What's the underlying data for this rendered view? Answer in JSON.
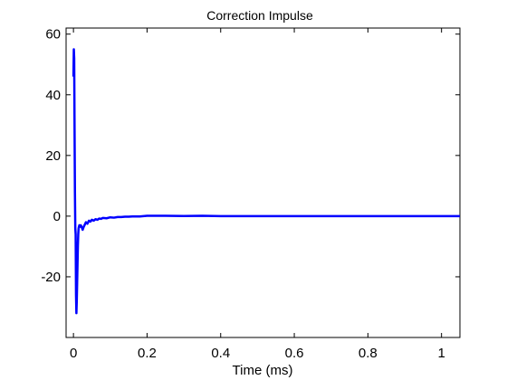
{
  "chart_data": {
    "type": "line",
    "title": "Correction Impulse",
    "xlabel": "Time (ms)",
    "ylabel": "",
    "xlim": [
      -0.02,
      1.05
    ],
    "ylim": [
      -40,
      62
    ],
    "xticks": [
      0,
      0.2,
      0.4,
      0.6,
      0.8,
      1
    ],
    "xtick_labels": [
      "0",
      "0.2",
      "0.4",
      "0.6",
      "0.8",
      "1"
    ],
    "yticks": [
      -20,
      0,
      20,
      40,
      60
    ],
    "ytick_labels": [
      "-20",
      "0",
      "20",
      "40",
      "60"
    ],
    "grid": false,
    "legend": "none",
    "series": [
      {
        "color": "#0000ff",
        "x": [
          0.0,
          0.001,
          0.002,
          0.003,
          0.004,
          0.005,
          0.006,
          0.007,
          0.008,
          0.009,
          0.01,
          0.011,
          0.012,
          0.013,
          0.014,
          0.016,
          0.018,
          0.02,
          0.022,
          0.025,
          0.028,
          0.03,
          0.034,
          0.038,
          0.042,
          0.046,
          0.05,
          0.055,
          0.06,
          0.065,
          0.07,
          0.075,
          0.08,
          0.09,
          0.1,
          0.11,
          0.12,
          0.13,
          0.14,
          0.15,
          0.16,
          0.18,
          0.2,
          0.25,
          0.3,
          0.35,
          0.4,
          0.5,
          0.6,
          0.7,
          0.8,
          0.9,
          1.0,
          1.05
        ],
        "y": [
          46,
          55,
          52,
          29,
          8,
          -4,
          -6,
          -26,
          -32,
          -28,
          -22,
          -16,
          -10,
          -6,
          -4,
          -3,
          -3.5,
          -3,
          -3.5,
          -4.5,
          -3.5,
          -3,
          -2,
          -2.5,
          -1.5,
          -1.8,
          -1.2,
          -1.5,
          -1.0,
          -1.2,
          -0.8,
          -0.9,
          -0.6,
          -0.7,
          -0.4,
          -0.5,
          -0.3,
          -0.3,
          -0.2,
          -0.2,
          -0.1,
          -0.1,
          0.1,
          0.1,
          0.05,
          0.1,
          0,
          0,
          0,
          0,
          0,
          0,
          0,
          0
        ]
      }
    ]
  }
}
